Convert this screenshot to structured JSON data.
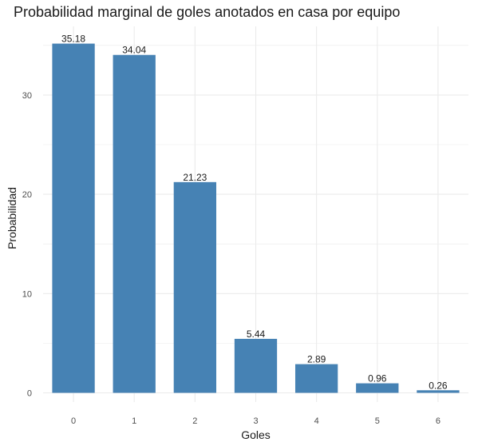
{
  "chart_data": {
    "type": "bar",
    "title": "Probabilidad marginal de goles anotados en casa por equipo",
    "xlabel": "Goles",
    "ylabel": "Probabilidad",
    "categories": [
      "0",
      "1",
      "2",
      "3",
      "4",
      "5",
      "6"
    ],
    "values": [
      35.18,
      34.04,
      21.23,
      5.44,
      2.89,
      0.96,
      0.26
    ],
    "data_labels": [
      "35.18",
      "34.04",
      "21.23",
      "5.44",
      "2.89",
      "0.96",
      "0.26"
    ],
    "yticks": [
      0,
      10,
      20,
      30
    ],
    "ylim": [
      0,
      36.9
    ],
    "grid": true,
    "bar_color": "#4682B4",
    "grid_color": "#EBEBEB",
    "background": "#FFFFFF"
  }
}
